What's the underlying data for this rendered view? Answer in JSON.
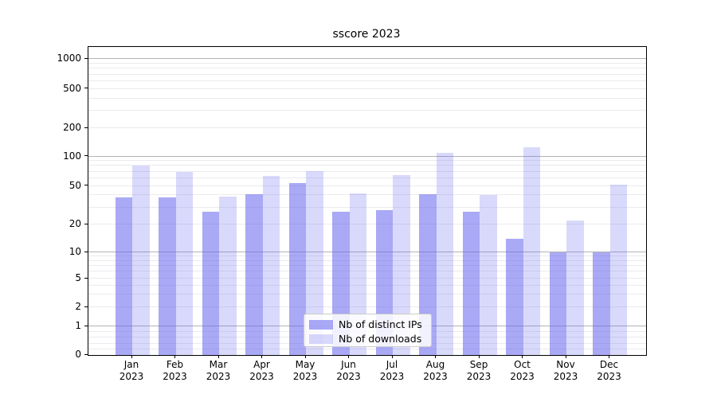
{
  "figure": {
    "title": "sscore 2023"
  },
  "legend": {
    "items": [
      {
        "label": "Nb of distinct IPs",
        "series": "ips"
      },
      {
        "label": "Nb of downloads",
        "series": "downloads"
      }
    ]
  },
  "y_axis": {
    "tick_labels": [
      "0",
      "1",
      "2",
      "5",
      "10",
      "20",
      "50",
      "100",
      "200",
      "500",
      "1000"
    ]
  },
  "x_axis": {
    "months": [
      "Jan",
      "Feb",
      "Mar",
      "Apr",
      "May",
      "Jun",
      "Jul",
      "Aug",
      "Sep",
      "Oct",
      "Nov",
      "Dec"
    ],
    "year": "2023"
  },
  "colors": {
    "ips_bar": "rgba(99,99,237,0.55)",
    "downloads_bar": "rgba(99,99,237,0.245)",
    "major_gridline": "#b3b3b3",
    "minor_gridline": "#ebebf0"
  },
  "chart_data": {
    "type": "bar",
    "title": "sscore 2023",
    "categories": [
      "Jan 2023",
      "Feb 2023",
      "Mar 2023",
      "Apr 2023",
      "May 2023",
      "Jun 2023",
      "Jul 2023",
      "Aug 2023",
      "Sep 2023",
      "Oct 2023",
      "Nov 2023",
      "Dec 2023"
    ],
    "series": [
      {
        "name": "Nb of distinct IPs",
        "values": [
          38,
          38,
          27,
          41,
          53,
          27,
          28,
          41,
          27,
          14,
          10,
          10
        ]
      },
      {
        "name": "Nb of downloads",
        "values": [
          80,
          70,
          39,
          63,
          71,
          42,
          65,
          110,
          40,
          125,
          22,
          51
        ]
      }
    ],
    "yscale": "symlog",
    "yticks": [
      0,
      1,
      2,
      5,
      10,
      20,
      50,
      100,
      200,
      500,
      1000
    ],
    "ylim": [
      0,
      1300
    ],
    "grid": true,
    "legend_position": "lower center"
  }
}
